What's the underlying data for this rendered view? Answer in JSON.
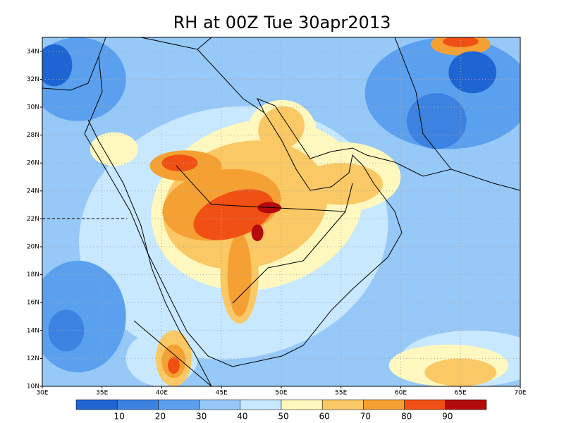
{
  "title": "RH at 00Z Tue 30apr2013",
  "map": {
    "xlim": [
      30,
      70
    ],
    "ylim": [
      10,
      35
    ],
    "xticks": [
      {
        "value": 30,
        "label": "30E"
      },
      {
        "value": 35,
        "label": "35E"
      },
      {
        "value": 40,
        "label": "40E"
      },
      {
        "value": 45,
        "label": "45E"
      },
      {
        "value": 50,
        "label": "50E"
      },
      {
        "value": 55,
        "label": "55E"
      },
      {
        "value": 60,
        "label": "60E"
      },
      {
        "value": 65,
        "label": "65E"
      },
      {
        "value": 70,
        "label": "70E"
      }
    ],
    "yticks": [
      {
        "value": 10,
        "label": "10N"
      },
      {
        "value": 12,
        "label": "12N"
      },
      {
        "value": 14,
        "label": "14N"
      },
      {
        "value": 16,
        "label": "16N"
      },
      {
        "value": 18,
        "label": "18N"
      },
      {
        "value": 20,
        "label": "20N"
      },
      {
        "value": 22,
        "label": "22N"
      },
      {
        "value": 24,
        "label": "24N"
      },
      {
        "value": 26,
        "label": "26N"
      },
      {
        "value": 28,
        "label": "28N"
      },
      {
        "value": 30,
        "label": "30N"
      },
      {
        "value": 32,
        "label": "32N"
      },
      {
        "value": 34,
        "label": "34N"
      }
    ],
    "grid": true
  },
  "colorbar": {
    "levels": [
      10,
      20,
      30,
      40,
      50,
      60,
      70,
      80,
      90
    ],
    "colors": [
      "#1e64d2",
      "#3c82e1",
      "#5aa0ee",
      "#96c8f8",
      "#c8e8ff",
      "#fff8be",
      "#fac864",
      "#f5a032",
      "#f05014",
      "#b40a0a"
    ]
  }
}
